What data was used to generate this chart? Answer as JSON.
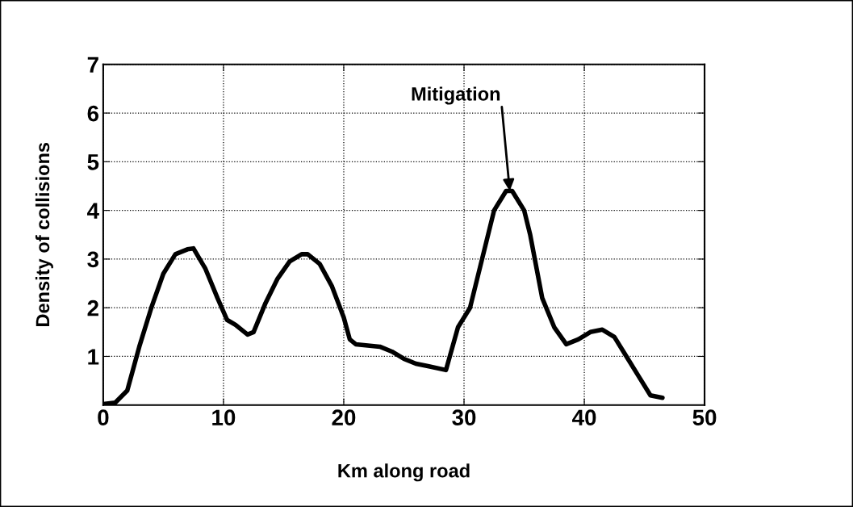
{
  "chart_data": {
    "type": "line",
    "xlabel": "Km along road",
    "ylabel": "Density of collisions",
    "x": [
      0,
      1,
      2,
      3,
      4,
      5,
      6,
      7,
      7.5,
      8.5,
      9.5,
      10.3,
      11,
      12,
      12.5,
      13.5,
      14.5,
      15.5,
      16.5,
      17,
      18,
      19,
      20,
      20.5,
      21,
      23,
      24,
      25,
      26,
      27,
      28.5,
      29.5,
      30.5,
      31.5,
      32.5,
      33.5,
      34,
      35,
      35.5,
      36.5,
      37.5,
      38.5,
      39.5,
      40.5,
      41.5,
      42.5,
      43.5,
      44.5,
      45.5,
      46.5
    ],
    "series": [
      {
        "color": "#000000",
        "values": [
          0.02,
          0.05,
          0.3,
          1.2,
          2.0,
          2.7,
          3.1,
          3.2,
          3.22,
          2.8,
          2.2,
          1.75,
          1.65,
          1.45,
          1.5,
          2.1,
          2.6,
          2.95,
          3.1,
          3.1,
          2.9,
          2.45,
          1.8,
          1.35,
          1.25,
          1.2,
          1.1,
          0.95,
          0.85,
          0.8,
          0.72,
          1.6,
          2.0,
          3.0,
          4.0,
          4.4,
          4.4,
          4.0,
          3.5,
          2.2,
          1.6,
          1.25,
          1.35,
          1.5,
          1.55,
          1.4,
          1.0,
          0.6,
          0.2,
          0.15
        ]
      }
    ],
    "xlim": [
      0,
      50
    ],
    "xticks": [
      0,
      10,
      20,
      30,
      40,
      50
    ],
    "ylim": [
      0,
      7
    ],
    "yticks": [
      1,
      2,
      3,
      4,
      5,
      6,
      7
    ],
    "grid": true,
    "annotations": [
      {
        "text": "Mitigation",
        "x": 33.8,
        "y": 4.4
      }
    ]
  }
}
